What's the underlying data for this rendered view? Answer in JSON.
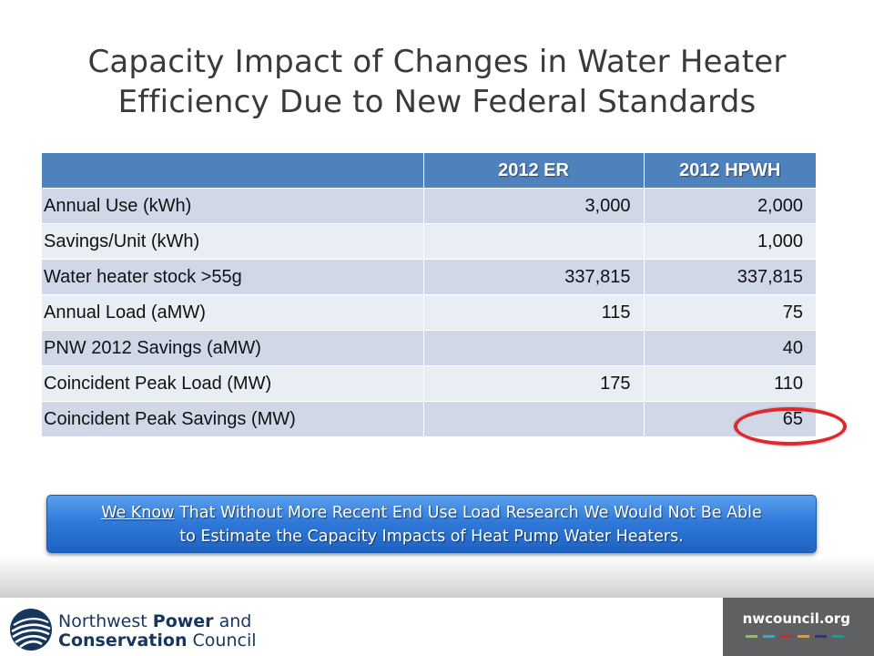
{
  "title": {
    "line1": "Capacity Impact of Changes in Water Heater",
    "line2": "Efficiency Due to New Federal Standards"
  },
  "table": {
    "headers": [
      "",
      "2012 ER",
      "2012 HPWH"
    ],
    "rows": [
      {
        "label": "Annual Use (kWh)",
        "er": "3,000",
        "hpwh": "2,000"
      },
      {
        "label": "Savings/Unit (kWh)",
        "er": "",
        "hpwh": "1,000"
      },
      {
        "label": "Water heater stock >55g",
        "er": "337,815",
        "hpwh": "337,815"
      },
      {
        "label": "Annual Load (aMW)",
        "er": "115",
        "hpwh": "75"
      },
      {
        "label": "PNW 2012 Savings (aMW)",
        "er": "",
        "hpwh": "40"
      },
      {
        "label": "Coincident Peak Load (MW)",
        "er": "175",
        "hpwh": "110"
      },
      {
        "label": "Coincident Peak Savings (MW)",
        "er": "",
        "hpwh": "65"
      }
    ]
  },
  "callout": {
    "underlined": "We Know",
    "rest_line1": " That Without More Recent End Use Load Research We Would Not Be Able",
    "line2": "to Estimate the Capacity Impacts of Heat Pump Water Heaters."
  },
  "footer": {
    "org_line1_a": "Northwest ",
    "org_line1_b": "Power",
    "org_line1_c": " and",
    "org_line2_a": "Conservation",
    "org_line2_b": " Council",
    "url": "nwcouncil.org",
    "bar_colors": [
      "#8cc63f",
      "#29abe2",
      "#ed1c24",
      "#f7941d",
      "#2e3192",
      "#00a79d"
    ]
  },
  "colors": {
    "header": "#4f81bd",
    "row_odd": "#d0d8e8",
    "row_even": "#e9edf4",
    "highlight": "#e0282b",
    "footer_box": "#5f6062"
  }
}
